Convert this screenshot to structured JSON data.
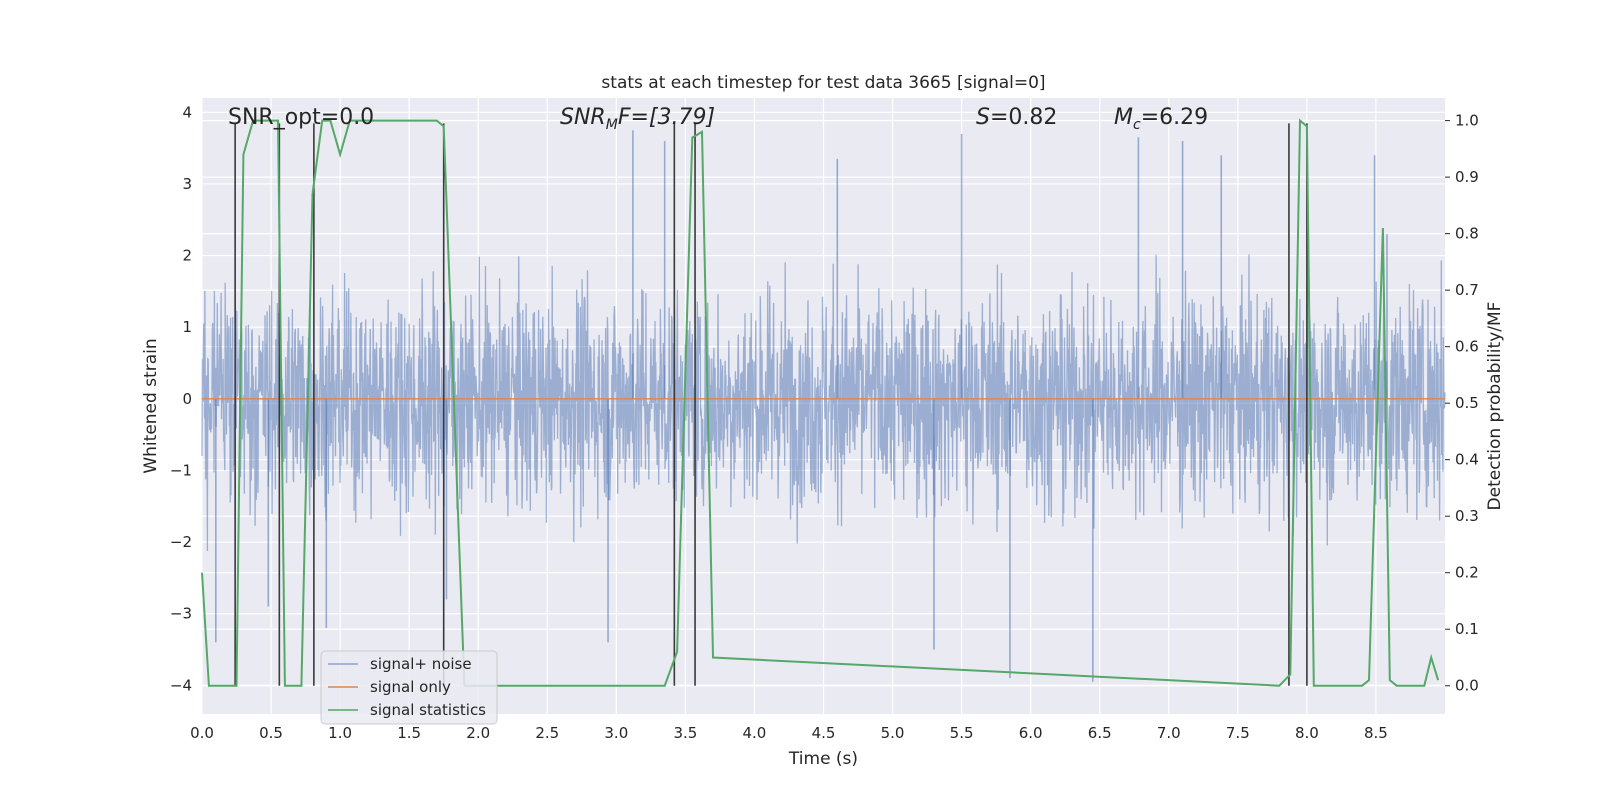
{
  "chart_data": {
    "type": "line",
    "title": "stats at each timestep for test data 3665 [signal=0]",
    "xlabel": "Time (s)",
    "ylabel": "Whitened strain",
    "ylabel_right": "Detection probability/MF",
    "xlim": [
      0.0,
      9.0
    ],
    "ylim": [
      -4.4,
      4.2
    ],
    "ylim_right": [
      -0.05,
      1.04
    ],
    "x_ticks": [
      "0.0",
      "0.5",
      "1.0",
      "1.5",
      "2.0",
      "2.5",
      "3.0",
      "3.5",
      "4.0",
      "4.5",
      "5.0",
      "5.5",
      "6.0",
      "6.5",
      "7.0",
      "7.5",
      "8.0",
      "8.5"
    ],
    "y_ticks_left": [
      "4",
      "3",
      "2",
      "1",
      "0",
      "−1",
      "−2",
      "−3",
      "−4"
    ],
    "y_ticks_right": [
      "1.0",
      "0.9",
      "0.8",
      "0.7",
      "0.6",
      "0.5",
      "0.4",
      "0.3",
      "0.2",
      "0.1",
      "0.0"
    ],
    "grid": true,
    "legend_position": "lower-left",
    "annotations": {
      "snr_opt": "SNR_opt=0.0",
      "snr_mf_prefix": "SNR",
      "snr_mf_sub": "M",
      "snr_mf_rest": "F=[3.79]",
      "s_label": "S",
      "s_value": "=0.82",
      "mc_label": "M",
      "mc_sub": "c",
      "mc_value": "=6.29"
    },
    "series": [
      {
        "name": "signal+ noise",
        "color": "#4c72b0",
        "axis": "left",
        "description": "dense noise, roughly within -2.5..2.5 with spikes to about ±3.8",
        "amplitude_typical": 2.2,
        "spikes": [
          {
            "x": 0.1,
            "y": -3.4
          },
          {
            "x": 0.48,
            "y": -2.9
          },
          {
            "x": 0.9,
            "y": -3.2
          },
          {
            "x": 1.77,
            "y": -2.8
          },
          {
            "x": 3.12,
            "y": 3.75
          },
          {
            "x": 3.35,
            "y": 3.6
          },
          {
            "x": 2.94,
            "y": -3.4
          },
          {
            "x": 4.6,
            "y": 3.35
          },
          {
            "x": 5.3,
            "y": -3.5
          },
          {
            "x": 5.5,
            "y": 3.7
          },
          {
            "x": 5.85,
            "y": -3.9
          },
          {
            "x": 6.45,
            "y": -3.95
          },
          {
            "x": 6.78,
            "y": 3.65
          },
          {
            "x": 7.1,
            "y": 3.6
          },
          {
            "x": 7.38,
            "y": 3.4
          },
          {
            "x": 8.49,
            "y": 3.4
          },
          {
            "x": 8.58,
            "y": 2.3
          }
        ]
      },
      {
        "name": "signal only",
        "color": "#dd8452",
        "axis": "left",
        "x": [
          0.0,
          9.0
        ],
        "y": [
          0.0,
          0.0
        ]
      },
      {
        "name": "signal statistics",
        "color": "#55a868",
        "axis": "right",
        "x": [
          0.0,
          0.05,
          0.25,
          0.3,
          0.37,
          0.55,
          0.6,
          0.72,
          0.8,
          0.87,
          0.93,
          1.0,
          1.07,
          1.15,
          1.7,
          1.75,
          1.9,
          3.2,
          3.35,
          3.44,
          3.55,
          3.62,
          3.7,
          7.8,
          7.88,
          7.95,
          8.0,
          8.05,
          8.1,
          8.4,
          8.45,
          8.55,
          8.6,
          8.65,
          8.75,
          8.85,
          8.9,
          8.95
        ],
        "y": [
          0.2,
          0.0,
          0.0,
          0.94,
          1.0,
          1.0,
          0.0,
          0.0,
          0.87,
          1.0,
          1.0,
          0.94,
          1.0,
          1.0,
          1.0,
          0.99,
          0.0,
          0.0,
          0.0,
          0.06,
          0.97,
          0.98,
          0.05,
          0.0,
          0.02,
          1.0,
          0.99,
          0.0,
          0.0,
          0.0,
          0.01,
          0.81,
          0.01,
          0.0,
          0.0,
          0.0,
          0.05,
          0.01
        ]
      }
    ],
    "vertical_markers": {
      "color": "#3a3a3a",
      "x": [
        0.24,
        0.56,
        0.81,
        1.75,
        3.42,
        3.57,
        7.87,
        8.0
      ],
      "y_top": 0.995,
      "y_bottom": 0.0
    }
  }
}
